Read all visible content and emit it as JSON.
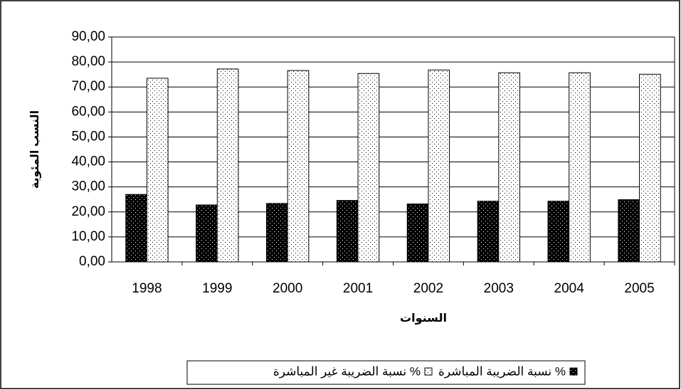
{
  "chart_data": {
    "type": "bar",
    "y_label": "النسب المئوية",
    "x_label": "السنوات",
    "categories": [
      "1998",
      "1999",
      "2000",
      "2001",
      "2002",
      "2003",
      "2004",
      "2005"
    ],
    "series": [
      {
        "name": "نسبة الضريبة المباشرة %",
        "color": "#000000",
        "values": [
          27.0,
          22.8,
          23.4,
          24.6,
          23.2,
          24.3,
          24.3,
          24.9
        ]
      },
      {
        "name": "نسبة الضريبة غير المباشرة %",
        "color": "#ffffff",
        "values": [
          73.5,
          77.2,
          76.6,
          75.4,
          76.8,
          75.7,
          75.7,
          75.1
        ]
      }
    ],
    "ylim": [
      0,
      90
    ],
    "yticks": [
      {
        "value": 0,
        "label": "0,00"
      },
      {
        "value": 10,
        "label": "10,00"
      },
      {
        "value": 20,
        "label": "20,00"
      },
      {
        "value": 30,
        "label": "30,00"
      },
      {
        "value": 40,
        "label": "40,00"
      },
      {
        "value": 50,
        "label": "50,00"
      },
      {
        "value": 60,
        "label": "60,00"
      },
      {
        "value": 70,
        "label": "70,00"
      },
      {
        "value": 80,
        "label": "80,00"
      },
      {
        "value": 90,
        "label": "90,00"
      }
    ],
    "grid": true
  }
}
